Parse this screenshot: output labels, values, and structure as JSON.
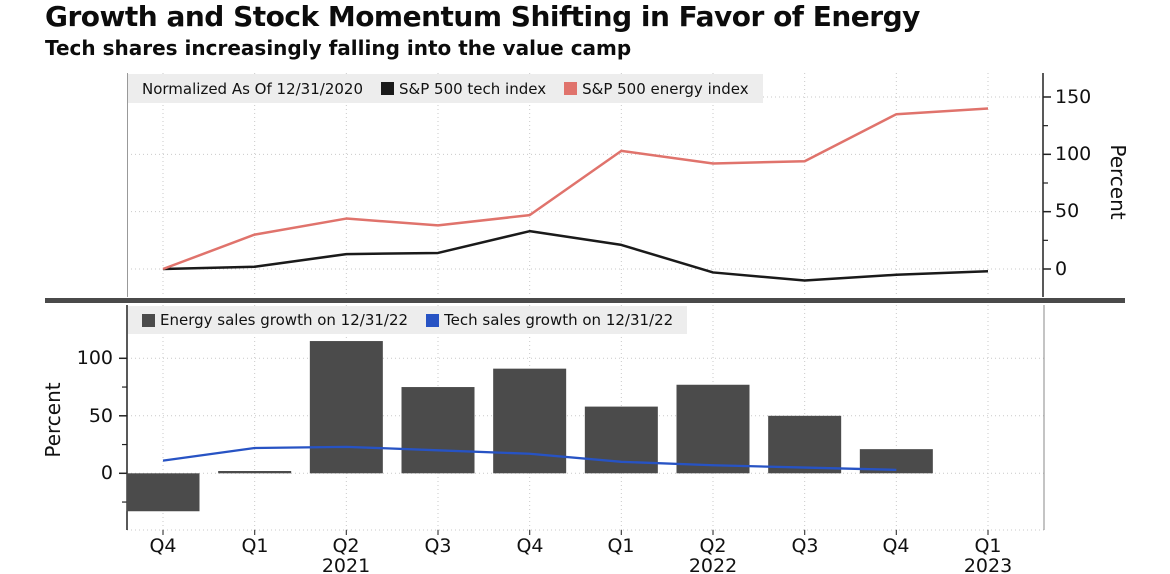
{
  "header": {
    "title": "Growth and Stock Momentum Shifting in Favor of Energy",
    "subtitle": "Tech shares increasingly falling into the value camp"
  },
  "colors": {
    "tech_index_line": "#1a1a1a",
    "energy_index_line": "#e0736c",
    "energy_bars": "#4b4b4b",
    "tech_growth_line": "#2753c4",
    "legend_bg": "#ededed",
    "grid": "#c9c9c9",
    "divider": "#4a4a4a"
  },
  "x_axis": {
    "quarter_labels": [
      "Q4",
      "Q1",
      "Q2",
      "Q3",
      "Q4",
      "Q1",
      "Q2",
      "Q3",
      "Q4",
      "Q1"
    ],
    "year_labels": [
      {
        "index": 2,
        "label": "2021"
      },
      {
        "index": 6,
        "label": "2022"
      },
      {
        "index": 9,
        "label": "2023"
      }
    ]
  },
  "chart_data": [
    {
      "type": "line",
      "panel": "top",
      "legend_note": "Normalized As Of 12/31/2020",
      "legend_position": "top-left-inside",
      "categories": [
        "Q4 2020",
        "Q1 2021",
        "Q2 2021",
        "Q3 2021",
        "Q4 2021",
        "Q1 2022",
        "Q2 2022",
        "Q3 2022",
        "Q4 2022",
        "Q1 2023"
      ],
      "series": [
        {
          "name": "S&P 500 tech index",
          "color_key": "tech_index_line",
          "values": [
            0,
            2,
            13,
            14,
            33,
            21,
            -3,
            -10,
            -5,
            -2
          ]
        },
        {
          "name": "S&P 500 energy index",
          "color_key": "energy_index_line",
          "values": [
            0,
            30,
            44,
            38,
            47,
            103,
            92,
            94,
            135,
            140
          ]
        }
      ],
      "xlabel": "",
      "ylabel": "Percent",
      "yaxis_side": "right",
      "yticks": [
        0,
        50,
        100,
        150
      ],
      "ylim": [
        -25,
        170
      ],
      "grid": true
    },
    {
      "type": "bar",
      "panel": "bottom",
      "legend_position": "top-left-inside",
      "categories": [
        "Q4 2020",
        "Q1 2021",
        "Q2 2021",
        "Q3 2021",
        "Q4 2021",
        "Q1 2022",
        "Q2 2022",
        "Q3 2022",
        "Q4 2022",
        "Q1 2023"
      ],
      "series": [
        {
          "name": "Energy sales growth on 12/31/22",
          "chart": "bar",
          "color_key": "energy_bars",
          "values": [
            -33,
            2,
            115,
            75,
            91,
            58,
            77,
            50,
            21,
            null
          ]
        },
        {
          "name": "Tech sales growth on 12/31/22",
          "chart": "line",
          "color_key": "tech_growth_line",
          "values": [
            11,
            22,
            23,
            20,
            17,
            10,
            7,
            5,
            3,
            null
          ]
        }
      ],
      "xlabel": "",
      "ylabel": "Percent",
      "yaxis_side": "left",
      "yticks": [
        0,
        50,
        100
      ],
      "ylim": [
        -50,
        145
      ],
      "grid": true
    }
  ]
}
